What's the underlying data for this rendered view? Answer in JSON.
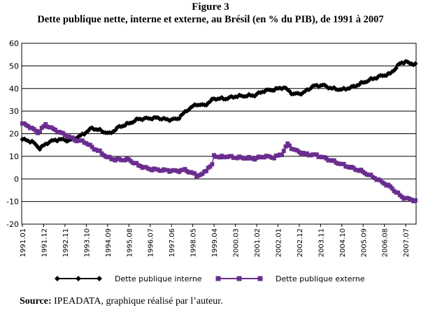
{
  "figure": {
    "label": "Figure 3",
    "title": "Dette publique nette, interne et externe, au Brésil (en % du PIB), de 1991 à 2007"
  },
  "source": {
    "prefix": "Source:",
    "text": "IPEADATA, graphique réalisé par l’auteur."
  },
  "chart_data": {
    "type": "line",
    "title": "Dette publique nette, interne et externe, au Brésil (en % du PIB), de 1991 à 2007",
    "xlabel": "",
    "ylabel": "",
    "ylim": [
      -20,
      60
    ],
    "yticks": [
      "-20",
      "-10",
      "0",
      "10",
      "20",
      "30",
      "40",
      "50",
      "60"
    ],
    "grid": "horizontal",
    "legend_position": "bottom",
    "x_tick_labels": [
      "1991.01",
      "1991.12",
      "1992.11",
      "1993.10",
      "1994.09",
      "1995.08",
      "1996.07",
      "1997.06",
      "1998.05",
      "1999.04",
      "2000.03",
      "2001.02",
      "2002.01",
      "2002.12",
      "2003.11",
      "2004.10",
      "2005.09",
      "2006.08",
      "2007.07"
    ],
    "months_per_tick": 11,
    "start": "1991.01",
    "n_points": 204,
    "series": [
      {
        "name": "Dette publique interne",
        "color": "#000000",
        "marker": "diamond",
        "keyframes": [
          [
            0,
            17.5
          ],
          [
            5,
            16.5
          ],
          [
            9,
            13.5
          ],
          [
            14,
            16.5
          ],
          [
            19,
            17.5
          ],
          [
            24,
            17
          ],
          [
            30,
            19
          ],
          [
            36,
            22.5
          ],
          [
            40,
            21.5
          ],
          [
            45,
            20
          ],
          [
            50,
            23
          ],
          [
            55,
            24.5
          ],
          [
            60,
            26.5
          ],
          [
            70,
            27
          ],
          [
            75,
            26.2
          ],
          [
            80,
            26.5
          ],
          [
            86,
            31
          ],
          [
            90,
            33
          ],
          [
            94,
            32.5
          ],
          [
            99,
            35.5
          ],
          [
            105,
            35.5
          ],
          [
            110,
            36.5
          ],
          [
            120,
            37
          ],
          [
            125,
            39
          ],
          [
            130,
            39.5
          ],
          [
            135,
            40.5
          ],
          [
            140,
            37.5
          ],
          [
            145,
            38
          ],
          [
            150,
            41
          ],
          [
            155,
            41.5
          ],
          [
            160,
            40
          ],
          [
            165,
            39.5
          ],
          [
            170,
            40.5
          ],
          [
            180,
            44
          ],
          [
            185,
            45.5
          ],
          [
            190,
            46.5
          ],
          [
            195,
            51
          ],
          [
            198,
            52
          ],
          [
            200,
            51
          ],
          [
            203,
            51
          ]
        ]
      },
      {
        "name": "Dette publique externe",
        "color": "#6a2d8f",
        "marker": "square",
        "keyframes": [
          [
            0,
            24.5
          ],
          [
            4,
            23
          ],
          [
            8,
            20.5
          ],
          [
            12,
            24
          ],
          [
            16,
            22
          ],
          [
            22,
            19.5
          ],
          [
            28,
            17
          ],
          [
            32,
            16.5
          ],
          [
            36,
            14
          ],
          [
            40,
            12
          ],
          [
            44,
            9.5
          ],
          [
            48,
            8.5
          ],
          [
            55,
            8.5
          ],
          [
            60,
            6
          ],
          [
            65,
            4.5
          ],
          [
            70,
            4
          ],
          [
            80,
            3.5
          ],
          [
            84,
            4
          ],
          [
            88,
            2.5
          ],
          [
            90,
            1.5
          ],
          [
            93,
            2
          ],
          [
            96,
            5
          ],
          [
            98,
            6
          ],
          [
            99,
            10.5
          ],
          [
            102,
            9.5
          ],
          [
            105,
            10
          ],
          [
            110,
            9.5
          ],
          [
            120,
            9
          ],
          [
            125,
            10
          ],
          [
            130,
            9.5
          ],
          [
            134,
            11
          ],
          [
            137,
            15.5
          ],
          [
            140,
            13
          ],
          [
            143,
            12
          ],
          [
            146,
            11
          ],
          [
            152,
            10.5
          ],
          [
            160,
            8
          ],
          [
            168,
            5.5
          ],
          [
            175,
            3.5
          ],
          [
            183,
            0
          ],
          [
            190,
            -3.5
          ],
          [
            196,
            -8
          ],
          [
            200,
            -9
          ],
          [
            203,
            -9.5
          ]
        ]
      }
    ]
  }
}
